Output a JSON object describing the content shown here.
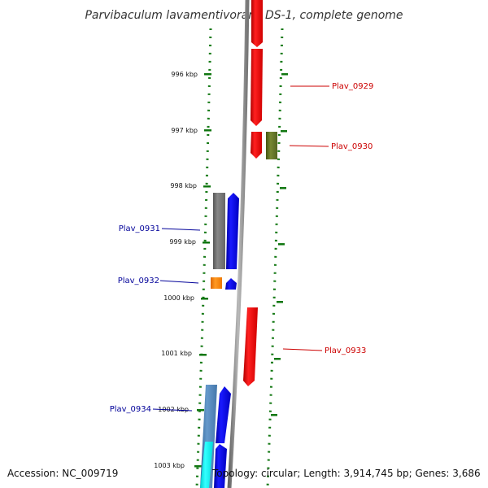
{
  "title": "Parvibaculum lavamentivorans DS-1, complete genome",
  "accession_text": "Accession: NC_009719",
  "topology_text": "Topology: circular; Length: 3,914,745 bp; Genes: 3,686",
  "tick_labels": [
    "996 kbp",
    "997 kbp",
    "998 kbp",
    "999 kbp",
    "1000 kbp",
    "1001 kbp",
    "1002 kbp",
    "1003 kbp"
  ],
  "gene_labels": [
    "Plav_0929",
    "Plav_0930",
    "Plav_0931",
    "Plav_0932",
    "Plav_0933",
    "Plav_0934"
  ],
  "colors": {
    "forward_label": "#cc0000",
    "reverse_label": "#000099",
    "tick": "#117711",
    "backbone": "#999999",
    "red": "#ff0000",
    "blue": "#0000ff",
    "gray": "#777777",
    "olive": "#667722",
    "orange": "#ff8800",
    "steel": "#5588bb",
    "cyan": "#00eeee"
  }
}
